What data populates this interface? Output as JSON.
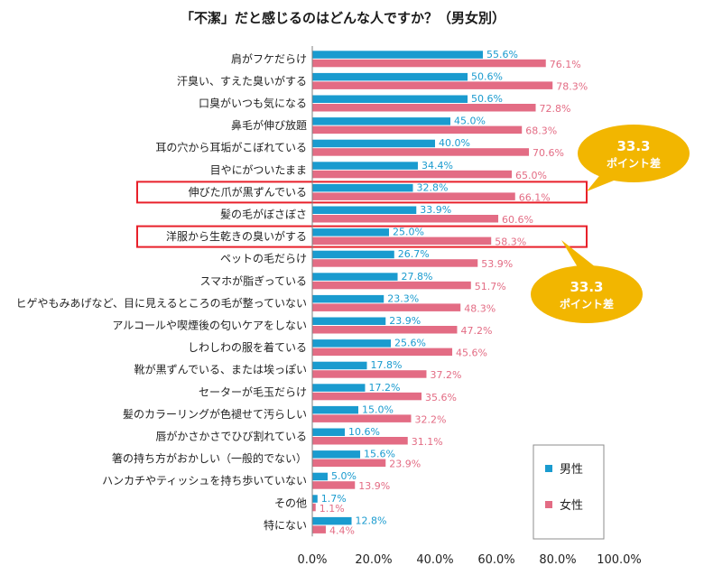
{
  "colors": {
    "male": "#1a9bcf",
    "female": "#e36c84",
    "male_label": "#1a9bcf",
    "female_label": "#e36c84",
    "highlight": "#e8202a",
    "callout": "#f2b600",
    "axis": "#7f7f7f"
  },
  "chart_data": {
    "type": "bar",
    "orientation": "horizontal",
    "title": "「不潔」だと感じるのはどんな人ですか？（男女別）",
    "categories": [
      "肩がフケだらけ",
      "汗臭い、すえた臭いがする",
      "口臭がいつも気になる",
      "鼻毛が伸び放題",
      "耳の穴から耳垢がこぼれている",
      "目やにがついたまま",
      "伸びた爪が黒ずんでいる",
      "髪の毛がぼさぼさ",
      "洋服から生乾きの臭いがする",
      "ペットの毛だらけ",
      "スマホが脂ぎっている",
      "ヒゲやもみあげなど、目に見えるところの毛が整っていない",
      "アルコールや喫煙後の匂いケアをしない",
      "しわしわの服を着ている",
      "靴が黒ずんでいる、または埃っぽい",
      "セーターが毛玉だらけ",
      "髪のカラーリングが色褪せて汚らしい",
      "唇がかさかさでひび割れている",
      "箸の持ち方がおかしい（一般的でない）",
      "ハンカチやティッシュを持ち歩いていない",
      "その他",
      "特にない"
    ],
    "series": [
      {
        "name": "男性",
        "values": [
          55.6,
          50.6,
          50.6,
          45.0,
          40.0,
          34.4,
          32.8,
          33.9,
          25.0,
          26.7,
          27.8,
          23.3,
          23.9,
          25.6,
          17.8,
          17.2,
          15.0,
          10.6,
          15.6,
          5.0,
          1.7,
          12.8
        ],
        "labels": [
          "55.6%",
          "50.6%",
          "50.6%",
          "45.0%",
          "40.0%",
          "34.4%",
          "32.8%",
          "33.9%",
          "25.0%",
          "26.7%",
          "27.8%",
          "23.3%",
          "23.9%",
          "25.6%",
          "17.8%",
          "17.2%",
          "15.0%",
          "10.6%",
          "15.6%",
          "5.0%",
          "1.7%",
          "12.8%"
        ]
      },
      {
        "name": "女性",
        "values": [
          76.1,
          78.3,
          72.8,
          68.3,
          70.6,
          65.0,
          66.1,
          60.6,
          58.3,
          53.9,
          51.7,
          48.3,
          47.2,
          45.6,
          37.2,
          35.6,
          32.2,
          31.1,
          23.9,
          13.9,
          1.1,
          4.4
        ],
        "labels": [
          "76.1%",
          "78.3%",
          "72.8%",
          "68.3%",
          "70.6%",
          "65.0%",
          "66.1%",
          "60.6%",
          "58.3%",
          "53.9%",
          "51.7%",
          "48.3%",
          "47.2%",
          "45.6%",
          "37.2%",
          "35.6%",
          "32.2%",
          "31.1%",
          "23.9%",
          "13.9%",
          "1.1%",
          "4.4%"
        ]
      }
    ],
    "xlim": [
      0,
      100
    ],
    "xticks": [
      "0.0%",
      "20.0%",
      "40.0%",
      "60.0%",
      "80.0%",
      "100.0%"
    ],
    "grid": false,
    "legend": {
      "placement": "bottom-right",
      "entries": [
        "男性",
        "女性"
      ]
    },
    "highlighted_categories": [
      "伸びた爪が黒ずんでいる",
      "洋服から生乾きの臭いがする"
    ],
    "annotations": [
      {
        "target": "伸びた爪が黒ずんでいる",
        "line1": "33.3",
        "line2": "ポイント差"
      },
      {
        "target": "洋服から生乾きの臭いがする",
        "line1": "33.3",
        "line2": "ポイント差"
      }
    ]
  }
}
